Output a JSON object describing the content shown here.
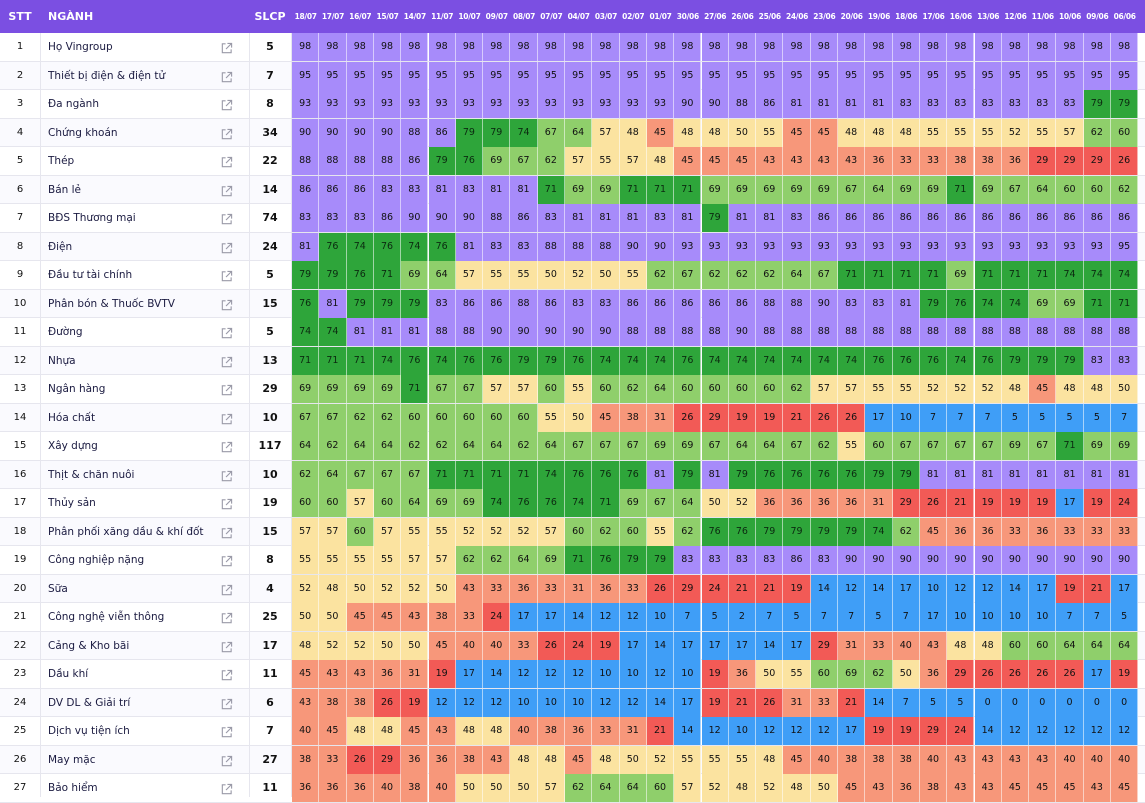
{
  "header": {
    "stt": "STT",
    "name": "NGÀNH",
    "slcp": "SLCP"
  },
  "icons": {
    "row_link": "external-link-icon"
  },
  "colors": {
    "header_bg": "#7b4fe2",
    "scale": [
      {
        "min": 81,
        "color": "#a78bfa"
      },
      {
        "min": 71,
        "color": "#2ea53a"
      },
      {
        "min": 60,
        "color": "#8fcf6b"
      },
      {
        "min": 48,
        "color": "#fbe3a0"
      },
      {
        "min": 31,
        "color": "#f7977a"
      },
      {
        "min": 19,
        "color": "#f25a56"
      },
      {
        "min": 0,
        "color": "#3f9ef7"
      }
    ]
  },
  "chart_data": {
    "type": "heatmap",
    "dates": [
      "18/07",
      "17/07",
      "16/07",
      "15/07",
      "14/07",
      "11/07",
      "10/07",
      "09/07",
      "08/07",
      "07/07",
      "04/07",
      "03/07",
      "02/07",
      "01/07",
      "30/06",
      "27/06",
      "26/06",
      "25/06",
      "24/06",
      "23/06",
      "20/06",
      "19/06",
      "18/06",
      "17/06",
      "16/06",
      "13/06",
      "12/06",
      "11/06",
      "10/06",
      "09/06",
      "06/06"
    ],
    "rows": [
      {
        "stt": "1",
        "name": "Họ Vingroup",
        "slcp": "5",
        "values": [
          98,
          98,
          98,
          98,
          98,
          98,
          98,
          98,
          98,
          98,
          98,
          98,
          98,
          98,
          98,
          98,
          98,
          98,
          98,
          98,
          98,
          98,
          98,
          98,
          98,
          98,
          98,
          98,
          98,
          98,
          98
        ]
      },
      {
        "stt": "2",
        "name": "Thiết bị điện & điện tử",
        "slcp": "7",
        "values": [
          95,
          95,
          95,
          95,
          95,
          95,
          95,
          95,
          95,
          95,
          95,
          95,
          95,
          95,
          95,
          95,
          95,
          95,
          95,
          95,
          95,
          95,
          95,
          95,
          95,
          95,
          95,
          95,
          95,
          95,
          95
        ]
      },
      {
        "stt": "3",
        "name": "Đa ngành",
        "slcp": "8",
        "values": [
          93,
          93,
          93,
          93,
          93,
          93,
          93,
          93,
          93,
          93,
          93,
          93,
          93,
          93,
          90,
          90,
          88,
          86,
          81,
          81,
          81,
          81,
          83,
          83,
          83,
          83,
          83,
          83,
          83,
          79,
          79
        ]
      },
      {
        "stt": "4",
        "name": "Chứng khoán",
        "slcp": "34",
        "values": [
          90,
          90,
          90,
          90,
          88,
          86,
          79,
          79,
          74,
          67,
          64,
          57,
          48,
          45,
          48,
          48,
          50,
          55,
          45,
          45,
          48,
          48,
          48,
          55,
          55,
          55,
          52,
          55,
          57,
          62,
          60
        ]
      },
      {
        "stt": "5",
        "name": "Thép",
        "slcp": "22",
        "values": [
          88,
          88,
          88,
          88,
          86,
          79,
          76,
          69,
          67,
          62,
          57,
          55,
          57,
          48,
          45,
          45,
          45,
          43,
          43,
          43,
          43,
          36,
          33,
          33,
          38,
          38,
          36,
          29,
          29,
          29,
          26
        ]
      },
      {
        "stt": "6",
        "name": "Bán lẻ",
        "slcp": "14",
        "values": [
          86,
          86,
          86,
          83,
          83,
          81,
          83,
          81,
          81,
          71,
          69,
          69,
          71,
          71,
          71,
          69,
          69,
          69,
          69,
          69,
          67,
          64,
          69,
          69,
          71,
          69,
          67,
          64,
          60,
          60,
          62
        ]
      },
      {
        "stt": "7",
        "name": "BĐS Thương mại",
        "slcp": "74",
        "values": [
          83,
          83,
          83,
          86,
          90,
          90,
          90,
          88,
          86,
          83,
          81,
          81,
          81,
          83,
          81,
          79,
          81,
          81,
          83,
          86,
          86,
          86,
          86,
          86,
          86,
          86,
          86,
          86,
          86,
          86,
          86
        ]
      },
      {
        "stt": "8",
        "name": "Điện",
        "slcp": "24",
        "values": [
          81,
          76,
          74,
          76,
          74,
          76,
          81,
          83,
          83,
          88,
          88,
          88,
          90,
          90,
          93,
          93,
          93,
          93,
          93,
          93,
          93,
          93,
          93,
          93,
          93,
          93,
          93,
          93,
          93,
          93,
          95
        ]
      },
      {
        "stt": "9",
        "name": "Đầu tư tài chính",
        "slcp": "5",
        "values": [
          79,
          79,
          76,
          71,
          69,
          64,
          57,
          55,
          55,
          50,
          52,
          50,
          55,
          62,
          67,
          62,
          62,
          62,
          64,
          67,
          71,
          71,
          71,
          71,
          69,
          71,
          71,
          71,
          74,
          74,
          74
        ]
      },
      {
        "stt": "10",
        "name": "Phân bón & Thuốc BVTV",
        "slcp": "15",
        "values": [
          76,
          81,
          79,
          79,
          79,
          83,
          86,
          86,
          88,
          86,
          83,
          83,
          86,
          86,
          86,
          86,
          86,
          88,
          88,
          90,
          83,
          83,
          81,
          79,
          76,
          74,
          74,
          69,
          69,
          71,
          71
        ]
      },
      {
        "stt": "11",
        "name": "Đường",
        "slcp": "5",
        "values": [
          74,
          74,
          81,
          81,
          81,
          88,
          88,
          90,
          90,
          90,
          90,
          90,
          88,
          88,
          88,
          88,
          90,
          88,
          88,
          88,
          88,
          88,
          88,
          88,
          88,
          88,
          88,
          88,
          88,
          88,
          88
        ]
      },
      {
        "stt": "12",
        "name": "Nhựa",
        "slcp": "13",
        "values": [
          71,
          71,
          71,
          74,
          76,
          74,
          76,
          76,
          79,
          79,
          76,
          74,
          74,
          74,
          76,
          74,
          74,
          74,
          74,
          74,
          74,
          76,
          76,
          76,
          74,
          76,
          79,
          79,
          79,
          83,
          83
        ]
      },
      {
        "stt": "13",
        "name": "Ngân hàng",
        "slcp": "29",
        "values": [
          69,
          69,
          69,
          69,
          71,
          67,
          67,
          57,
          57,
          60,
          55,
          60,
          62,
          64,
          60,
          60,
          60,
          60,
          62,
          57,
          57,
          55,
          55,
          52,
          52,
          52,
          48,
          45,
          48,
          48,
          50
        ]
      },
      {
        "stt": "14",
        "name": "Hóa chất",
        "slcp": "10",
        "values": [
          67,
          67,
          62,
          62,
          60,
          60,
          60,
          60,
          60,
          55,
          50,
          45,
          38,
          31,
          26,
          29,
          19,
          19,
          21,
          26,
          26,
          17,
          10,
          7,
          7,
          7,
          5,
          5,
          5,
          5,
          7
        ]
      },
      {
        "stt": "15",
        "name": "Xây dựng",
        "slcp": "117",
        "values": [
          64,
          62,
          64,
          64,
          62,
          62,
          64,
          64,
          62,
          64,
          67,
          67,
          67,
          69,
          69,
          67,
          64,
          64,
          67,
          62,
          55,
          60,
          67,
          67,
          67,
          67,
          69,
          67,
          71,
          69,
          69
        ]
      },
      {
        "stt": "16",
        "name": "Thịt & chăn nuôi",
        "slcp": "10",
        "values": [
          62,
          64,
          67,
          67,
          67,
          71,
          71,
          71,
          71,
          74,
          76,
          76,
          76,
          81,
          79,
          81,
          79,
          76,
          76,
          76,
          76,
          79,
          79,
          81,
          81,
          81,
          81,
          81,
          81,
          81,
          81
        ]
      },
      {
        "stt": "17",
        "name": "Thủy sản",
        "slcp": "19",
        "values": [
          60,
          60,
          57,
          60,
          64,
          69,
          69,
          74,
          76,
          76,
          74,
          71,
          69,
          67,
          64,
          50,
          52,
          36,
          36,
          36,
          36,
          31,
          29,
          26,
          21,
          19,
          19,
          19,
          17,
          19,
          24
        ]
      },
      {
        "stt": "18",
        "name": "Phân phối xăng dầu & khí đốt",
        "slcp": "15",
        "values": [
          57,
          57,
          60,
          57,
          55,
          55,
          52,
          52,
          52,
          57,
          60,
          62,
          60,
          55,
          62,
          76,
          76,
          79,
          79,
          79,
          79,
          74,
          62,
          45,
          36,
          36,
          33,
          36,
          33,
          33,
          33
        ]
      },
      {
        "stt": "19",
        "name": "Công nghiệp nặng",
        "slcp": "8",
        "values": [
          55,
          55,
          55,
          55,
          57,
          57,
          62,
          62,
          64,
          69,
          71,
          76,
          79,
          79,
          83,
          83,
          83,
          83,
          86,
          83,
          90,
          90,
          90,
          90,
          90,
          90,
          90,
          90,
          90,
          90,
          90
        ]
      },
      {
        "stt": "20",
        "name": "Sữa",
        "slcp": "4",
        "values": [
          52,
          48,
          50,
          52,
          52,
          50,
          43,
          33,
          36,
          33,
          31,
          36,
          33,
          26,
          29,
          24,
          21,
          21,
          19,
          14,
          12,
          14,
          17,
          10,
          12,
          12,
          14,
          17,
          19,
          21,
          17
        ]
      },
      {
        "stt": "21",
        "name": "Công nghệ viễn thông",
        "slcp": "25",
        "values": [
          50,
          50,
          45,
          45,
          43,
          38,
          33,
          24,
          17,
          17,
          14,
          12,
          12,
          10,
          7,
          5,
          2,
          7,
          5,
          7,
          7,
          5,
          7,
          17,
          10,
          10,
          10,
          10,
          7,
          7,
          5
        ]
      },
      {
        "stt": "22",
        "name": "Cảng & Kho bãi",
        "slcp": "17",
        "values": [
          48,
          52,
          52,
          50,
          50,
          45,
          40,
          40,
          33,
          26,
          24,
          19,
          17,
          14,
          17,
          17,
          17,
          14,
          17,
          29,
          31,
          33,
          40,
          43,
          48,
          48,
          60,
          60,
          64,
          64,
          64
        ]
      },
      {
        "stt": "23",
        "name": "Dầu khí",
        "slcp": "11",
        "values": [
          45,
          43,
          43,
          36,
          31,
          19,
          17,
          14,
          12,
          12,
          12,
          10,
          10,
          12,
          10,
          19,
          36,
          50,
          55,
          60,
          69,
          62,
          50,
          36,
          29,
          26,
          26,
          26,
          26,
          17,
          19
        ]
      },
      {
        "stt": "24",
        "name": "DV DL & Giải trí",
        "slcp": "6",
        "values": [
          43,
          38,
          38,
          26,
          19,
          12,
          12,
          12,
          10,
          10,
          10,
          12,
          12,
          14,
          17,
          19,
          21,
          26,
          31,
          33,
          21,
          14,
          7,
          5,
          5,
          0,
          0,
          0,
          0,
          0,
          0
        ]
      },
      {
        "stt": "25",
        "name": "Dịch vụ tiện ích",
        "slcp": "7",
        "values": [
          40,
          45,
          48,
          48,
          45,
          43,
          48,
          48,
          40,
          38,
          36,
          33,
          31,
          21,
          14,
          12,
          10,
          12,
          12,
          12,
          17,
          19,
          19,
          29,
          24,
          14,
          12,
          12,
          12,
          12,
          12
        ]
      },
      {
        "stt": "26",
        "name": "May mặc",
        "slcp": "27",
        "values": [
          38,
          33,
          26,
          29,
          36,
          36,
          38,
          43,
          48,
          48,
          45,
          48,
          50,
          52,
          55,
          55,
          55,
          48,
          45,
          40,
          38,
          38,
          38,
          40,
          43,
          43,
          43,
          43,
          40,
          40,
          40
        ]
      },
      {
        "stt": "27",
        "name": "Bảo hiểm",
        "slcp": "11",
        "values": [
          36,
          36,
          36,
          40,
          38,
          40,
          50,
          50,
          50,
          57,
          62,
          64,
          64,
          60,
          57,
          52,
          48,
          52,
          48,
          50,
          45,
          43,
          36,
          38,
          43,
          43,
          45,
          45,
          45,
          43,
          45
        ]
      }
    ]
  }
}
